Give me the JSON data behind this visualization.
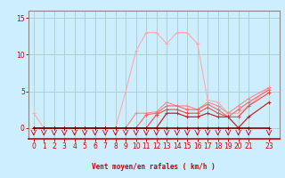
{
  "background_color": "#cceeff",
  "grid_color": "#aacccc",
  "x_label": "Vent moyen/en rafales ( km/h )",
  "x_ticks": [
    0,
    1,
    2,
    3,
    4,
    5,
    6,
    7,
    8,
    9,
    10,
    11,
    12,
    13,
    14,
    15,
    16,
    17,
    18,
    19,
    20,
    21,
    23
  ],
  "ylim": [
    -1.5,
    16
  ],
  "xlim": [
    -0.5,
    24
  ],
  "y_ticks": [
    0,
    5,
    10,
    15
  ],
  "lines": [
    {
      "x": [
        0,
        1,
        2,
        3,
        4,
        5,
        6,
        7,
        8,
        9,
        10,
        11,
        12,
        13,
        14,
        15,
        16,
        17,
        18,
        19,
        20,
        21,
        23
      ],
      "y": [
        2,
        0,
        0,
        0,
        0,
        0,
        0,
        0,
        0,
        5,
        10.5,
        13,
        13,
        11.5,
        13,
        13,
        11.5,
        3.8,
        3.5,
        2.0,
        2.0,
        3.0,
        5.5
      ],
      "color": "#ffaaaa",
      "lw": 0.8,
      "marker": "+",
      "ms": 3
    },
    {
      "x": [
        0,
        1,
        2,
        3,
        4,
        5,
        6,
        7,
        8,
        9,
        10,
        11,
        12,
        13,
        14,
        15,
        16,
        17,
        18,
        19,
        20,
        21,
        23
      ],
      "y": [
        0,
        0,
        0,
        0,
        0,
        0,
        0,
        0,
        0,
        0,
        2.0,
        2.0,
        2.2,
        3.5,
        3.0,
        3.0,
        2.5,
        3.5,
        3.0,
        2.0,
        3.0,
        4.0,
        5.5
      ],
      "color": "#ff8888",
      "lw": 0.8,
      "marker": "+",
      "ms": 3
    },
    {
      "x": [
        0,
        1,
        2,
        3,
        4,
        5,
        6,
        7,
        8,
        9,
        10,
        11,
        12,
        13,
        14,
        15,
        16,
        17,
        18,
        19,
        20,
        21,
        23
      ],
      "y": [
        0,
        0,
        0,
        0,
        0,
        0,
        0,
        0,
        0,
        0,
        0,
        1.8,
        2.0,
        3.0,
        3.0,
        2.5,
        2.5,
        3.2,
        2.5,
        1.5,
        2.5,
        3.5,
        5.2
      ],
      "color": "#ff6666",
      "lw": 0.8,
      "marker": "+",
      "ms": 3
    },
    {
      "x": [
        0,
        1,
        2,
        3,
        4,
        5,
        6,
        7,
        8,
        9,
        10,
        11,
        12,
        13,
        14,
        15,
        16,
        17,
        18,
        19,
        20,
        21,
        23
      ],
      "y": [
        0,
        0,
        0,
        0,
        0,
        0,
        0,
        0,
        0,
        0,
        0,
        0,
        1.8,
        2.5,
        2.5,
        2.0,
        2.0,
        2.8,
        2.0,
        1.5,
        1.5,
        3.0,
        4.8
      ],
      "color": "#ff4444",
      "lw": 0.8,
      "marker": "+",
      "ms": 3
    },
    {
      "x": [
        0,
        1,
        2,
        3,
        4,
        5,
        6,
        7,
        8,
        9,
        10,
        11,
        12,
        13,
        14,
        15,
        16,
        17,
        18,
        19,
        20,
        21,
        23
      ],
      "y": [
        0,
        0,
        0,
        0,
        0,
        0,
        0,
        0,
        0,
        0,
        0,
        0,
        0,
        2.0,
        2.0,
        1.5,
        1.5,
        2.0,
        1.5,
        1.5,
        0,
        1.5,
        3.5
      ],
      "color": "#cc2222",
      "lw": 0.9,
      "marker": "+",
      "ms": 3
    },
    {
      "x": [
        0,
        1,
        2,
        3,
        4,
        5,
        6,
        7,
        8,
        9,
        10,
        11,
        12,
        13,
        14,
        15,
        16,
        17,
        18,
        19,
        20,
        21,
        23
      ],
      "y": [
        0,
        0,
        0,
        0,
        0,
        0,
        0,
        0,
        0,
        0,
        0,
        0,
        0,
        0,
        0,
        0,
        0,
        0,
        0,
        0,
        0,
        0,
        0
      ],
      "color": "#880000",
      "lw": 1.2,
      "marker": "+",
      "ms": 3
    }
  ],
  "arrow_x_positions": [
    0,
    1,
    2,
    3,
    4,
    5,
    6,
    7,
    8,
    9,
    10,
    11,
    12,
    13,
    14,
    15,
    16,
    17,
    18,
    19,
    20,
    21,
    23
  ]
}
